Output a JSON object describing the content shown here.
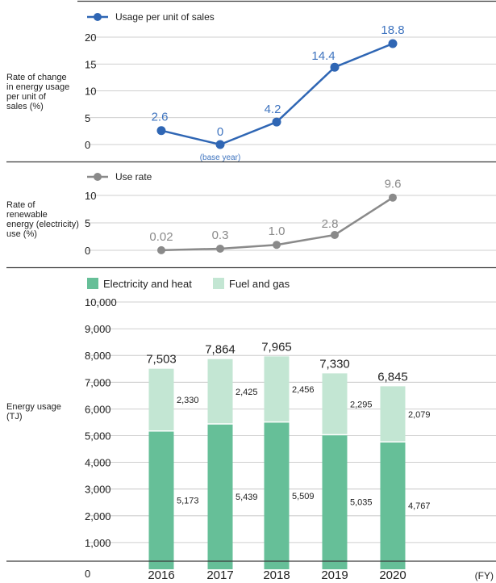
{
  "colors": {
    "line1": "#2f66b4",
    "line1_label": "#3f74bf",
    "line2": "#8a8a8a",
    "line2_label": "#8a8a8a",
    "electricity": "#66bf98",
    "fuel": "#c3e6d3",
    "grid": "#bfbfbf",
    "rule": "#3a3a3a",
    "text": "#222222"
  },
  "chart_data": [
    {
      "type": "line",
      "ylabel": "Rate of change\nin energy usage\nper unit of\nsales (%)",
      "yticks": [
        0,
        5,
        10,
        15,
        20
      ],
      "ylim": [
        0,
        20
      ],
      "x": [
        "2016",
        "2017",
        "2018",
        "2019",
        "2020"
      ],
      "series": [
        {
          "name": "Usage per unit of sales",
          "values": [
            2.6,
            0,
            4.2,
            14.4,
            18.8
          ],
          "labels": [
            "2.6",
            "0",
            "4.2",
            "14.4",
            "18.8"
          ]
        }
      ],
      "annotations": [
        {
          "x": "2017",
          "text": "(base year)"
        }
      ]
    },
    {
      "type": "line",
      "ylabel": "Rate of\nrenewable\nenergy (electricity)\nuse  (%)",
      "yticks": [
        0,
        5,
        10
      ],
      "ylim": [
        0,
        10
      ],
      "x": [
        "2016",
        "2017",
        "2018",
        "2019",
        "2020"
      ],
      "series": [
        {
          "name": "Use rate",
          "values": [
            0.02,
            0.3,
            1.0,
            2.8,
            9.6
          ],
          "labels": [
            "0.02",
            "0.3",
            "1.0",
            "2.8",
            "9.6"
          ]
        }
      ]
    },
    {
      "type": "bar",
      "stacked": true,
      "ylabel": "Energy usage\n(TJ)",
      "yticks": [
        0,
        1000,
        2000,
        3000,
        4000,
        5000,
        6000,
        7000,
        8000,
        9000,
        10000
      ],
      "ytick_labels": [
        "0",
        "1,000",
        "2,000",
        "3,000",
        "4,000",
        "5,000",
        "6,000",
        "7,000",
        "8,000",
        "9,000",
        "10,000"
      ],
      "ylim": [
        0,
        10000
      ],
      "categories": [
        "2016",
        "2017",
        "2018",
        "2019",
        "2020"
      ],
      "xunit": "(FY)",
      "series": [
        {
          "name": "Electricity and heat",
          "values": [
            5173,
            5439,
            5509,
            5035,
            4767
          ],
          "labels": [
            "5,173",
            "5,439",
            "5,509",
            "5,035",
            "4,767"
          ]
        },
        {
          "name": "Fuel and gas",
          "values": [
            2330,
            2425,
            2456,
            2295,
            2079
          ],
          "labels": [
            "2,330",
            "2,425",
            "2,456",
            "2,295",
            "2,079"
          ]
        }
      ],
      "totals": [
        7503,
        7864,
        7965,
        7330,
        6845
      ],
      "total_labels": [
        "7,503",
        "7,864",
        "7,965",
        "7,330",
        "6,845"
      ]
    }
  ]
}
